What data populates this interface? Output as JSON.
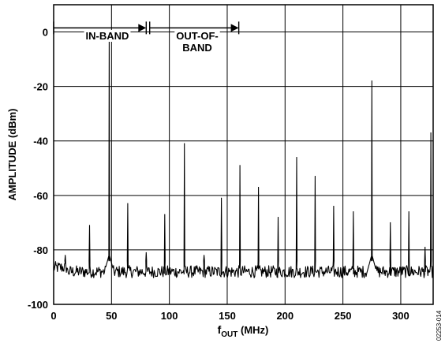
{
  "chart_data": {
    "type": "line",
    "title": "",
    "xlabel_main": "f",
    "xlabel_sub": "OUT",
    "xlabel_unit": " (MHz)",
    "ylabel": "AMPLITUDE (dBm)",
    "xlim": [
      0,
      328
    ],
    "ylim": [
      -100,
      10
    ],
    "x_ticks": [
      0,
      50,
      100,
      150,
      200,
      250,
      300
    ],
    "y_ticks": [
      0,
      -20,
      -40,
      -60,
      -80,
      -100
    ],
    "grid": true,
    "figure_id": "02253-014",
    "noise_floor": -88,
    "band_annotations": {
      "in_band_label": "IN-BAND",
      "out_of_band_label_line1": "OUT-OF-",
      "out_of_band_label_line2": "BAND",
      "y": 1.5,
      "in_band_range": [
        0,
        80
      ],
      "out_of_band_range": [
        83,
        160
      ]
    },
    "spurs": [
      {
        "x": 10,
        "y": -82
      },
      {
        "x": 31,
        "y": -71
      },
      {
        "x": 48,
        "y": -1
      },
      {
        "x": 64,
        "y": -63
      },
      {
        "x": 80,
        "y": -81
      },
      {
        "x": 96,
        "y": -67
      },
      {
        "x": 113,
        "y": -41
      },
      {
        "x": 130,
        "y": -82
      },
      {
        "x": 145,
        "y": -61
      },
      {
        "x": 161,
        "y": -49
      },
      {
        "x": 177,
        "y": -57
      },
      {
        "x": 194,
        "y": -68
      },
      {
        "x": 210,
        "y": -46
      },
      {
        "x": 226,
        "y": -53
      },
      {
        "x": 242,
        "y": -64
      },
      {
        "x": 259,
        "y": -66
      },
      {
        "x": 275,
        "y": -18
      },
      {
        "x": 291,
        "y": -70
      },
      {
        "x": 307,
        "y": -66
      },
      {
        "x": 321,
        "y": -79
      },
      {
        "x": 326,
        "y": -37
      }
    ]
  }
}
